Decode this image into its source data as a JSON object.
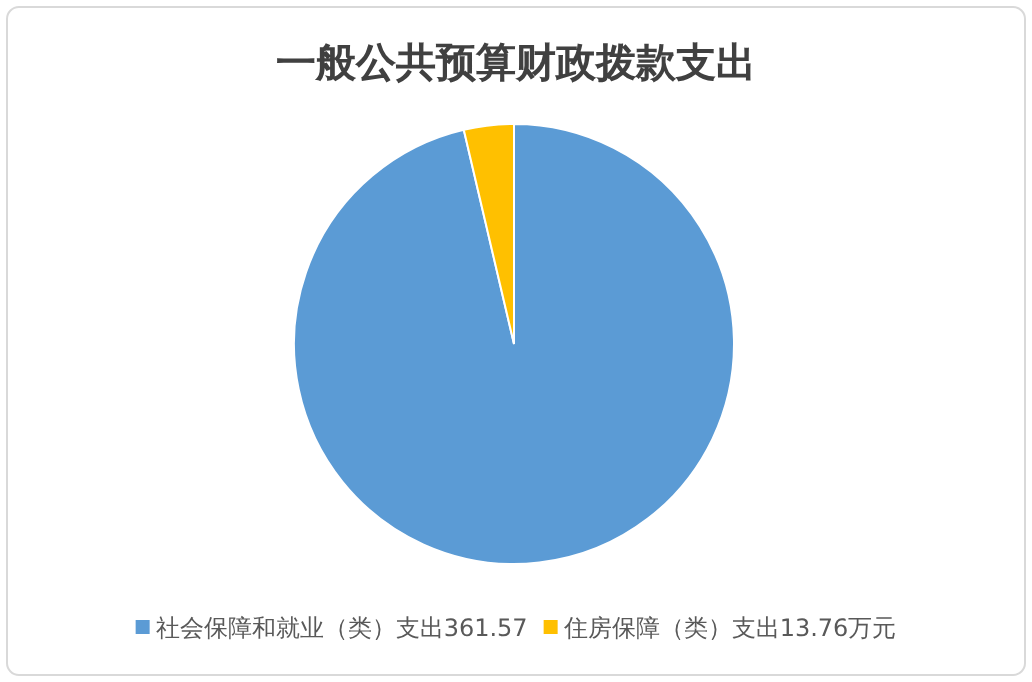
{
  "chart_data": {
    "type": "pie",
    "title": "一般公共预算财政拨款支出",
    "categories": [
      "社会保障和就业（类）支出361.57",
      "住房保障（类）支出13.76万元"
    ],
    "values": [
      361.57,
      13.76
    ],
    "colors": [
      "#5b9bd5",
      "#ffc000"
    ],
    "legend": "bottom"
  }
}
